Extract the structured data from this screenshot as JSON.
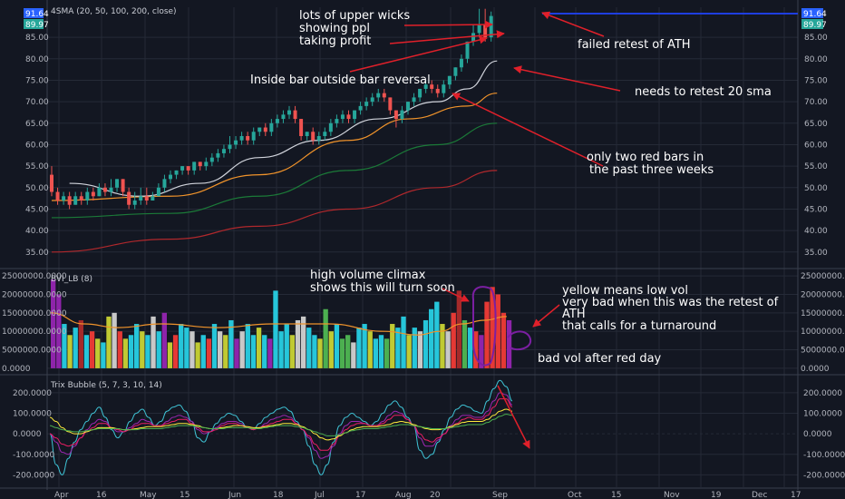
{
  "colors": {
    "background": "#131722",
    "grid": "#252a37",
    "up": "#26a69a",
    "down": "#ef5350",
    "sma20": "#d1d4dc",
    "sma50": "#f0932b",
    "sma100": "#1b7a38",
    "sma200": "#b0282c",
    "annotation_arrow": "#e0202a",
    "price_tag": "#2962ff",
    "last_tag": "#26a69a",
    "purple": "#8e24aa",
    "teal": "#26c6da",
    "olive": "#c0ca33",
    "maroon": "#a52a2a",
    "silver": "#c8c8c8",
    "green_bar": "#4caf50",
    "red_bar": "#e53935",
    "ath_line": "#1e3ee0",
    "trix1": "#3ec1d3",
    "trix2": "#9c27b0",
    "trix3": "#e91e63",
    "trix4": "#ffeb3b",
    "trix5": "#4caf50"
  },
  "price_pane": {
    "title": "4SMA (20, 50, 100, 200, close)",
    "ath_tag": "91.64",
    "last_tag": "89.97",
    "y_ticks": [
      "85.00",
      "80.00",
      "75.00",
      "70.00",
      "65.00",
      "60.00",
      "55.00",
      "50.00",
      "45.00",
      "40.00",
      "35.00"
    ]
  },
  "volume_pane": {
    "title": "BVI_LB (8)",
    "y_ticks": [
      "25000000.0000",
      "20000000.0000",
      "15000000.0000",
      "10000000.0000",
      "5000000.0000",
      "0.0000"
    ]
  },
  "trix_pane": {
    "title": "Trix Bubble (5, 7, 3, 10, 14)",
    "y_ticks": [
      "200.0000",
      "100.0000",
      "0.0000",
      "-100.0000",
      "-200.0000"
    ]
  },
  "x_ticks": [
    "Apr",
    "16",
    "May",
    "15",
    "Jun",
    "18",
    "Jul",
    "17",
    "Aug",
    "20",
    "Sep",
    "Oct",
    "15",
    "Nov",
    "19",
    "Dec",
    "17"
  ],
  "annotations": {
    "wicks_1": "lots of upper wicks",
    "wicks_2": "showing ppl",
    "wicks_3": "taking profit",
    "inside_bar": "Inside bar outside bar reversal",
    "failed_retest": "failed retest of ATH",
    "retest_sma": "needs to retest 20 sma",
    "red_bars_1": "only two red bars in",
    "red_bars_2": "the past three weeks",
    "climax_1": "high volume climax",
    "climax_2": "shows this will turn soon",
    "yellow_1": "yellow means low vol",
    "yellow_2": "very bad when this was the retest of",
    "yellow_3": "ATH",
    "yellow_4": "that calls for a turnaround",
    "bad_vol": "bad vol after red day"
  },
  "chart_data": [
    {
      "type": "candlestick",
      "title": "4SMA (20, 50, 100, 200, close)",
      "ylim": [
        32,
        92
      ],
      "candles": [
        [
          53,
          49,
          55,
          48
        ],
        [
          49,
          47,
          50,
          46
        ],
        [
          47,
          48,
          49,
          46
        ],
        [
          48,
          46,
          49,
          45
        ],
        [
          46,
          48,
          49,
          46
        ],
        [
          48,
          47,
          49,
          46
        ],
        [
          47,
          49,
          50,
          46
        ],
        [
          49,
          48,
          50,
          47
        ],
        [
          48,
          50,
          51,
          48
        ],
        [
          50,
          49,
          51,
          48
        ],
        [
          49,
          50,
          52,
          48
        ],
        [
          50,
          52,
          52,
          49
        ],
        [
          52,
          49,
          52,
          48
        ],
        [
          49,
          46,
          50,
          45
        ],
        [
          46,
          47,
          49,
          45
        ],
        [
          47,
          48,
          50,
          46
        ],
        [
          48,
          47,
          50,
          46
        ],
        [
          47,
          48,
          49,
          47
        ],
        [
          48,
          50,
          51,
          48
        ],
        [
          50,
          52,
          53,
          49
        ],
        [
          52,
          53,
          54,
          51
        ],
        [
          53,
          54,
          54,
          52
        ],
        [
          54,
          55,
          55,
          53
        ],
        [
          55,
          54,
          55,
          53
        ],
        [
          54,
          56,
          56,
          53
        ],
        [
          56,
          55,
          56,
          54
        ],
        [
          55,
          56,
          57,
          54
        ],
        [
          56,
          57,
          58,
          55
        ],
        [
          57,
          58,
          59,
          56
        ],
        [
          58,
          59,
          60,
          57
        ],
        [
          59,
          60,
          62,
          58
        ],
        [
          60,
          61,
          62,
          59
        ],
        [
          61,
          62,
          63,
          60
        ],
        [
          62,
          61,
          63,
          60
        ],
        [
          61,
          63,
          64,
          60
        ],
        [
          63,
          64,
          64,
          62
        ],
        [
          64,
          63,
          65,
          62
        ],
        [
          63,
          65,
          66,
          62
        ],
        [
          65,
          66,
          67,
          64
        ],
        [
          66,
          67,
          68,
          65
        ],
        [
          67,
          68,
          69,
          66
        ],
        [
          68,
          66,
          69,
          65
        ],
        [
          66,
          62,
          66,
          61
        ],
        [
          62,
          63,
          63,
          61
        ],
        [
          63,
          61,
          64,
          60
        ],
        [
          61,
          62,
          63,
          60
        ],
        [
          62,
          63,
          64,
          61
        ],
        [
          63,
          65,
          66,
          62
        ],
        [
          65,
          66,
          67,
          64
        ],
        [
          66,
          67,
          68,
          65
        ],
        [
          67,
          66,
          68,
          65
        ],
        [
          66,
          68,
          68,
          65
        ],
        [
          68,
          69,
          70,
          67
        ],
        [
          69,
          70,
          71,
          68
        ],
        [
          70,
          71,
          72,
          69
        ],
        [
          71,
          72,
          73,
          70
        ],
        [
          72,
          71,
          73,
          70
        ],
        [
          71,
          68,
          71,
          67
        ],
        [
          68,
          66,
          68,
          64
        ],
        [
          66,
          68,
          69,
          65
        ],
        [
          68,
          70,
          70,
          67
        ],
        [
          70,
          71,
          72,
          69
        ],
        [
          71,
          73,
          73,
          70
        ],
        [
          73,
          74,
          75,
          72
        ],
        [
          74,
          73,
          75,
          72
        ],
        [
          73,
          72,
          74,
          71
        ],
        [
          72,
          74,
          75,
          71
        ],
        [
          74,
          76,
          76,
          73
        ],
        [
          76,
          78,
          78,
          75
        ],
        [
          78,
          80,
          81,
          77
        ],
        [
          80,
          84,
          84,
          79
        ],
        [
          84,
          86,
          88,
          83
        ],
        [
          86,
          88,
          91.64,
          85
        ],
        [
          88,
          85,
          91.64,
          84
        ],
        [
          85,
          89.97,
          91,
          84
        ]
      ],
      "sma20_knots": [
        [
          3,
          51
        ],
        [
          15,
          48
        ],
        [
          25,
          51
        ],
        [
          35,
          57
        ],
        [
          45,
          61
        ],
        [
          55,
          66
        ],
        [
          65,
          70
        ],
        [
          70,
          73
        ],
        [
          75,
          79.5
        ]
      ],
      "sma50_knots": [
        [
          0,
          47
        ],
        [
          20,
          48
        ],
        [
          35,
          53
        ],
        [
          50,
          61
        ],
        [
          60,
          66
        ],
        [
          70,
          69
        ],
        [
          75,
          72
        ]
      ],
      "sma100_knots": [
        [
          0,
          43
        ],
        [
          20,
          44
        ],
        [
          35,
          48
        ],
        [
          50,
          54
        ],
        [
          65,
          60
        ],
        [
          75,
          65
        ]
      ],
      "sma200_knots": [
        [
          0,
          35
        ],
        [
          20,
          38
        ],
        [
          35,
          41
        ],
        [
          50,
          45
        ],
        [
          65,
          50
        ],
        [
          75,
          54
        ]
      ]
    },
    {
      "type": "bar",
      "title": "BVI_LB (8)",
      "ylim": [
        -1000000,
        26000000
      ],
      "values": [
        24,
        20,
        12,
        9,
        11,
        13,
        9,
        10,
        8,
        7,
        14,
        15,
        10,
        8,
        9,
        12,
        10,
        9,
        14,
        10,
        15,
        7,
        9,
        12,
        11,
        10,
        7,
        9,
        8,
        12,
        10,
        9,
        13,
        8,
        10,
        12,
        9,
        11,
        9,
        8,
        21,
        10,
        12,
        9,
        13,
        14,
        11,
        9,
        8,
        16,
        10,
        12,
        8,
        9,
        7,
        11,
        12,
        10,
        8,
        9,
        8,
        12,
        11,
        14,
        9,
        11,
        10,
        13,
        16,
        18,
        12,
        10,
        15,
        21,
        13,
        11,
        10,
        9,
        18,
        22,
        20,
        15,
        13
      ],
      "colors": [
        "purple",
        "purple",
        "teal",
        "olive",
        "teal",
        "maroon",
        "teal",
        "red",
        "olive",
        "teal",
        "olive",
        "silver",
        "red",
        "olive",
        "teal",
        "teal",
        "olive",
        "teal",
        "silver",
        "teal",
        "purple",
        "olive",
        "red",
        "teal",
        "teal",
        "silver",
        "olive",
        "teal",
        "red",
        "teal",
        "silver",
        "olive",
        "teal",
        "purple",
        "silver",
        "teal",
        "teal",
        "olive",
        "teal",
        "purple",
        "teal",
        "teal",
        "teal",
        "olive",
        "silver",
        "silver",
        "teal",
        "teal",
        "olive",
        "green",
        "olive",
        "teal",
        "green",
        "green",
        "silver",
        "teal",
        "teal",
        "olive",
        "teal",
        "teal",
        "green",
        "olive",
        "teal",
        "teal",
        "olive",
        "teal",
        "silver",
        "teal",
        "teal",
        "teal",
        "olive",
        "silver",
        "red",
        "maroon",
        "green",
        "teal",
        "red",
        "purple",
        "red",
        "red",
        "red",
        "red",
        "purple",
        "olive"
      ],
      "baseline_avg_knots": [
        [
          0,
          15
        ],
        [
          6,
          12
        ],
        [
          12,
          11
        ],
        [
          20,
          12
        ],
        [
          30,
          11
        ],
        [
          40,
          12
        ],
        [
          50,
          12
        ],
        [
          60,
          10
        ],
        [
          66,
          9
        ],
        [
          70,
          10
        ],
        [
          74,
          12
        ],
        [
          78,
          13
        ],
        [
          82,
          14
        ]
      ]
    },
    {
      "type": "line",
      "title": "Trix Bubble (5, 7, 3, 10, 14)",
      "ylim": [
        -260,
        270
      ],
      "series": [
        {
          "values": [
            0,
            -150,
            -200,
            -120,
            -40,
            20,
            60,
            100,
            130,
            80,
            20,
            -20,
            10,
            60,
            100,
            120,
            80,
            40,
            60,
            110,
            130,
            140,
            110,
            60,
            -20,
            -40,
            10,
            50,
            80,
            100,
            90,
            60,
            30,
            20,
            50,
            80,
            100,
            120,
            130,
            110,
            60,
            20,
            -60,
            -150,
            -200,
            -150,
            -40,
            40,
            80,
            100,
            80,
            60,
            40,
            60,
            100,
            140,
            160,
            130,
            80,
            40,
            -80,
            -120,
            -100,
            -40,
            20,
            80,
            120,
            140,
            130,
            110,
            100,
            160,
            220,
            260,
            230,
            160
          ]
        },
        {
          "values": [
            0,
            -40,
            -90,
            -100,
            -60,
            -20,
            20,
            50,
            70,
            60,
            30,
            10,
            10,
            30,
            50,
            70,
            60,
            40,
            40,
            60,
            80,
            90,
            80,
            60,
            20,
            0,
            10,
            30,
            50,
            60,
            60,
            50,
            30,
            20,
            30,
            50,
            70,
            80,
            90,
            80,
            50,
            20,
            -20,
            -80,
            -120,
            -110,
            -60,
            0,
            40,
            60,
            60,
            50,
            40,
            40,
            60,
            90,
            110,
            100,
            70,
            40,
            -20,
            -60,
            -60,
            -30,
            0,
            40,
            70,
            90,
            90,
            80,
            80,
            110,
            160,
            200,
            190,
            140
          ]
        },
        {
          "values": [
            0,
            -20,
            -50,
            -60,
            -50,
            -20,
            10,
            30,
            50,
            50,
            30,
            20,
            10,
            20,
            40,
            50,
            50,
            40,
            40,
            50,
            60,
            70,
            70,
            50,
            30,
            10,
            10,
            20,
            40,
            50,
            50,
            40,
            30,
            20,
            30,
            40,
            50,
            60,
            70,
            70,
            50,
            20,
            -10,
            -50,
            -80,
            -80,
            -50,
            -10,
            20,
            40,
            50,
            50,
            40,
            40,
            50,
            70,
            90,
            90,
            70,
            40,
            0,
            -30,
            -40,
            -20,
            0,
            30,
            50,
            70,
            80,
            70,
            70,
            90,
            130,
            170,
            170,
            130
          ]
        },
        {
          "values": [
            80,
            60,
            30,
            10,
            0,
            0,
            10,
            20,
            30,
            30,
            30,
            25,
            20,
            20,
            25,
            30,
            35,
            35,
            35,
            40,
            45,
            50,
            50,
            45,
            40,
            30,
            25,
            25,
            30,
            35,
            40,
            40,
            35,
            30,
            30,
            35,
            40,
            45,
            50,
            50,
            45,
            35,
            20,
            0,
            -20,
            -30,
            -25,
            -10,
            5,
            20,
            30,
            35,
            35,
            35,
            40,
            45,
            55,
            60,
            55,
            45,
            35,
            25,
            20,
            20,
            25,
            35,
            45,
            55,
            60,
            60,
            60,
            70,
            90,
            110,
            120,
            110
          ]
        },
        {
          "values": [
            40,
            30,
            20,
            15,
            10,
            10,
            15,
            20,
            25,
            25,
            25,
            25,
            20,
            20,
            20,
            25,
            25,
            25,
            25,
            30,
            35,
            40,
            40,
            40,
            35,
            30,
            25,
            25,
            25,
            30,
            30,
            30,
            30,
            25,
            25,
            30,
            35,
            40,
            40,
            40,
            35,
            30,
            20,
            10,
            0,
            -10,
            -10,
            -5,
            5,
            15,
            20,
            25,
            25,
            25,
            30,
            35,
            40,
            45,
            45,
            40,
            35,
            30,
            25,
            25,
            25,
            30,
            35,
            40,
            45,
            45,
            45,
            55,
            70,
            85,
            95,
            90
          ]
        }
      ]
    }
  ]
}
